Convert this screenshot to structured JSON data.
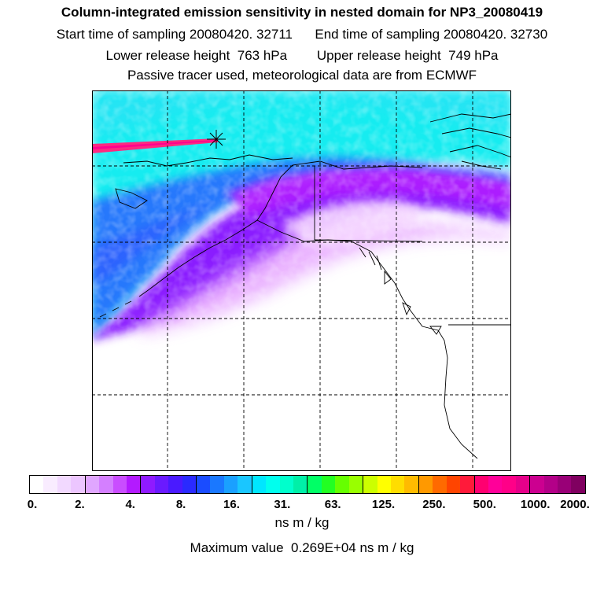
{
  "header": {
    "title": "Column-integrated emission sensitivity in nested domain for NP3_20080419",
    "line2": "Start time of sampling 20080420. 32711      End time of sampling 20080420. 32730",
    "line3": "Lower release height  763 hPa        Upper release height  749 hPa",
    "line4": "Passive tracer used, meteorological data are from ECMWF"
  },
  "map": {
    "release_marker": "asterisk",
    "gridlines": "dashed lat/lon graticule",
    "coastline_color": "#000000"
  },
  "colorbar": {
    "tick_labels": [
      "0.",
      "2.",
      "4.",
      "8.",
      "16.",
      "31.",
      "63.",
      "125.",
      "250.",
      "500.",
      "1000.",
      "2000."
    ],
    "swatch_colors": [
      "#ffffff",
      "#f9ecff",
      "#f2d9ff",
      "#ecc6ff",
      "#e0a6ff",
      "#d47fff",
      "#c94dff",
      "#b31aff",
      "#8f1aff",
      "#6a1aff",
      "#4a1aff",
      "#2a2aff",
      "#1a4cff",
      "#1a78ff",
      "#1aa0ff",
      "#1ac6ff",
      "#00e6ff",
      "#00ffee",
      "#00ffcc",
      "#00f0a8",
      "#00ff66",
      "#22ff22",
      "#66ff00",
      "#99ff00",
      "#ccff00",
      "#ffff00",
      "#ffdd00",
      "#ffbb00",
      "#ff9900",
      "#ff6a00",
      "#ff4400",
      "#ff1a3a",
      "#ff0070",
      "#ff0099",
      "#ff0088",
      "#e6008a",
      "#cc0090",
      "#b30088",
      "#990077",
      "#800060"
    ],
    "units": "ns m / kg",
    "max_value_text": "Maximum value  0.269E+04 ns m / kg"
  }
}
